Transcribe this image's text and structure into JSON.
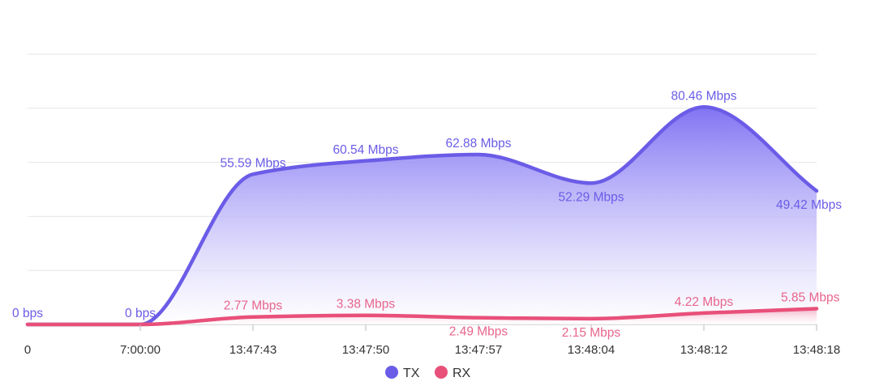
{
  "chart_data": {
    "type": "area",
    "categories": [
      "0",
      "7:00:00",
      "13:47:43",
      "13:47:50",
      "13:47:57",
      "13:48:04",
      "13:48:12",
      "13:48:18"
    ],
    "series": [
      {
        "name": "TX",
        "color": "#6b5ce7",
        "values": [
          0,
          0,
          55.59,
          60.54,
          62.88,
          52.29,
          80.46,
          49.42
        ],
        "labels": [
          "0 bps",
          "0 bps",
          "55.59 Mbps",
          "60.54 Mbps",
          "62.88 Mbps",
          "52.29 Mbps",
          "80.46 Mbps",
          "49.42 Mbps"
        ]
      },
      {
        "name": "RX",
        "color": "#e8507a",
        "values": [
          0,
          0,
          2.77,
          3.38,
          2.49,
          2.15,
          4.22,
          5.85
        ],
        "labels": [
          "",
          "",
          "2.77 Mbps",
          "3.38 Mbps",
          "2.49 Mbps",
          "2.15 Mbps",
          "4.22 Mbps",
          "5.85 Mbps"
        ]
      }
    ],
    "ylim": [
      0,
      100
    ],
    "grid": true,
    "legend": "bottom-center",
    "title": "",
    "xlabel": "",
    "ylabel": ""
  }
}
